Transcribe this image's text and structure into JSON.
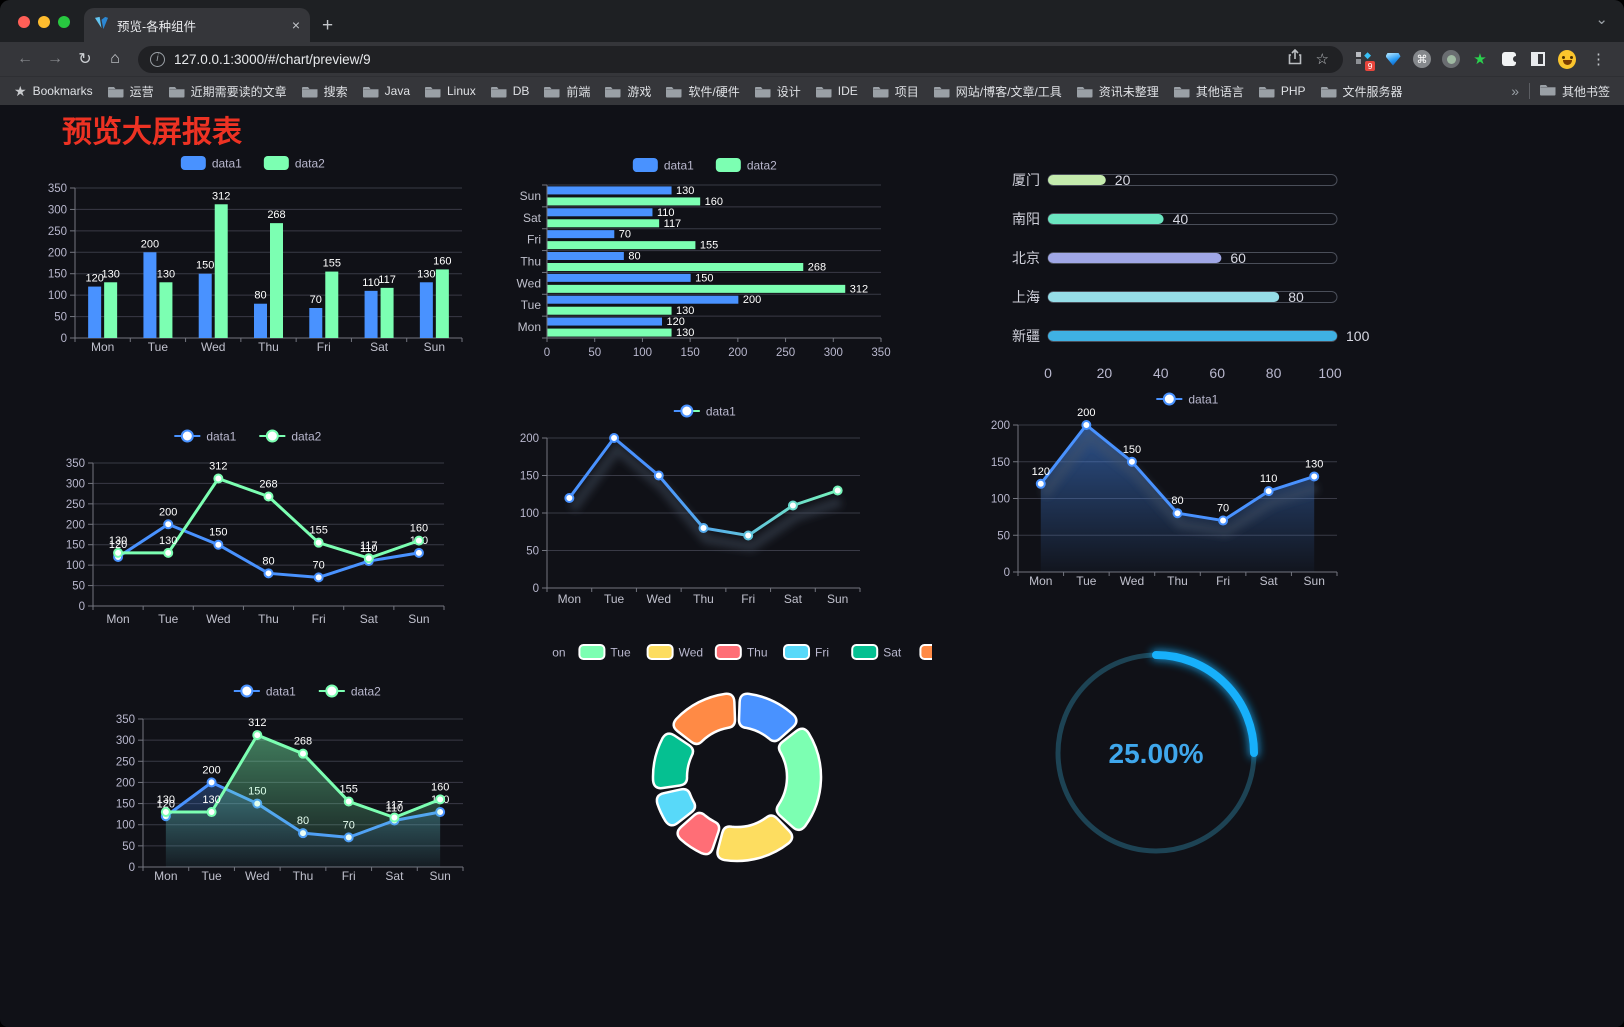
{
  "browser": {
    "tab": {
      "title": "预览-各种组件"
    },
    "url": "127.0.0.1:3000/#/chart/preview/9",
    "traffic_light_colors": [
      "#ff5f57",
      "#febc2e",
      "#28c840"
    ],
    "icons": {
      "back": "←",
      "forward": "→",
      "reload": "↻",
      "home": "⌂",
      "menu": "⋮",
      "tab_close": "×",
      "new_tab": "+",
      "tab_search": "⌄",
      "overflow": "»",
      "command": "⌘",
      "info": "i",
      "bookmark_star": "☆",
      "bookmarks_bar_star": "★",
      "diamond": "◆",
      "ext_star": "★"
    },
    "extensions_badge": "9",
    "bookmarks_label": "Bookmarks",
    "bookmark_folders": [
      "运营",
      "近期需要读的文章",
      "搜索",
      "Java",
      "Linux",
      "DB",
      "前端",
      "游戏",
      "软件/硬件",
      "设计",
      "IDE",
      "项目",
      "网站/博客/文章/工具",
      "资讯未整理",
      "其他语言",
      "PHP",
      "文件服务器"
    ],
    "other_bookmarks": "其他书签"
  },
  "page": {
    "title": "预览大屏报表"
  },
  "chart_data": [
    {
      "id": "bar-grouped",
      "type": "bar",
      "categories": [
        "Mon",
        "Tue",
        "Wed",
        "Thu",
        "Fri",
        "Sat",
        "Sun"
      ],
      "series": [
        {
          "name": "data1",
          "color": "#4992ff",
          "values": [
            120,
            200,
            150,
            80,
            70,
            110,
            130
          ]
        },
        {
          "name": "data2",
          "color": "#7cffb2",
          "values": [
            130,
            130,
            312,
            268,
            155,
            117,
            160
          ]
        }
      ],
      "ylim": [
        0,
        350
      ],
      "ytick_step": 50,
      "legend_position": "top",
      "grid": true
    },
    {
      "id": "bar-horizontal",
      "type": "bar",
      "orientation": "horizontal",
      "categories_top_to_bottom": [
        "Sun",
        "Sat",
        "Fri",
        "Thu",
        "Wed",
        "Tue",
        "Mon"
      ],
      "series": [
        {
          "name": "data1",
          "color": "#4992ff",
          "values": [
            130,
            110,
            70,
            80,
            150,
            200,
            120
          ]
        },
        {
          "name": "data2",
          "color": "#7cffb2",
          "values": [
            160,
            117,
            155,
            268,
            312,
            130,
            130
          ]
        }
      ],
      "xlim": [
        0,
        350
      ],
      "xtick_step": 50,
      "legend_position": "top"
    },
    {
      "id": "city-progress",
      "type": "bar",
      "orientation": "horizontal-progress",
      "items": [
        {
          "label": "厦门",
          "value": 20,
          "color": "#c4ebad"
        },
        {
          "label": "南阳",
          "value": 40,
          "color": "#6be6c1"
        },
        {
          "label": "北京",
          "value": 60,
          "color": "#a0a7e6"
        },
        {
          "label": "上海",
          "value": 80,
          "color": "#96dee8"
        },
        {
          "label": "新疆",
          "value": 100,
          "color": "#3fb1e3"
        }
      ],
      "xlim": [
        0,
        100
      ],
      "xticks": [
        0,
        20,
        40,
        60,
        80,
        100
      ]
    },
    {
      "id": "line-dual",
      "type": "line",
      "categories": [
        "Mon",
        "Tue",
        "Wed",
        "Thu",
        "Fri",
        "Sat",
        "Sun"
      ],
      "series": [
        {
          "name": "data1",
          "color": "#4992ff",
          "values": [
            120,
            200,
            150,
            80,
            70,
            110,
            130
          ]
        },
        {
          "name": "data2",
          "color": "#7cffb2",
          "values": [
            130,
            130,
            312,
            268,
            155,
            117,
            160
          ]
        }
      ],
      "ylim": [
        0,
        350
      ],
      "ytick_step": 50,
      "point_labels": true
    },
    {
      "id": "line-gradient",
      "type": "line",
      "categories": [
        "Mon",
        "Tue",
        "Wed",
        "Thu",
        "Fri",
        "Sat",
        "Sun"
      ],
      "series": [
        {
          "name": "data1",
          "color_gradient": [
            "#4992ff",
            "#7cffb2"
          ],
          "values": [
            120,
            200,
            150,
            80,
            70,
            110,
            130
          ]
        }
      ],
      "ylim": [
        0,
        200
      ],
      "ytick_step": 50,
      "point_labels": false,
      "shadow": true
    },
    {
      "id": "line-area-single",
      "type": "area",
      "categories": [
        "Mon",
        "Tue",
        "Wed",
        "Thu",
        "Fri",
        "Sat",
        "Sun"
      ],
      "series": [
        {
          "name": "data1",
          "color": "#4992ff",
          "area": true,
          "values": [
            120,
            200,
            150,
            80,
            70,
            110,
            130
          ]
        }
      ],
      "ylim": [
        0,
        200
      ],
      "ytick_step": 50,
      "point_labels": true,
      "shadow": true
    },
    {
      "id": "area-dual",
      "type": "area",
      "categories": [
        "Mon",
        "Tue",
        "Wed",
        "Thu",
        "Fri",
        "Sat",
        "Sun"
      ],
      "series": [
        {
          "name": "data1",
          "color": "#4992ff",
          "area": true,
          "values": [
            120,
            200,
            150,
            80,
            70,
            110,
            130
          ]
        },
        {
          "name": "data2",
          "color": "#7cffb2",
          "area": true,
          "values": [
            130,
            130,
            312,
            268,
            155,
            117,
            160
          ]
        }
      ],
      "ylim": [
        0,
        350
      ],
      "ytick_step": 50,
      "point_labels": true
    },
    {
      "id": "donut",
      "type": "pie",
      "inner_radius_ratio": 0.58,
      "legend_position": "top",
      "items": [
        {
          "label": "Mon",
          "value": 120,
          "color": "#4992ff"
        },
        {
          "label": "Tue",
          "value": 200,
          "color": "#7cffb2"
        },
        {
          "label": "Wed",
          "value": 150,
          "color": "#fddd60"
        },
        {
          "label": "Thu",
          "value": 80,
          "color": "#ff6e76"
        },
        {
          "label": "Fri",
          "value": 70,
          "color": "#58d9f9"
        },
        {
          "label": "Sat",
          "value": 110,
          "color": "#05c091"
        },
        {
          "label": "Sun",
          "value": 130,
          "color": "#ff8a45"
        }
      ]
    },
    {
      "id": "gauge",
      "type": "gauge",
      "value": 25,
      "max": 100,
      "display": "25.00%",
      "color": "#17b0fb",
      "track_color": "#1d4354",
      "text_color": "#3fa7ec"
    }
  ]
}
